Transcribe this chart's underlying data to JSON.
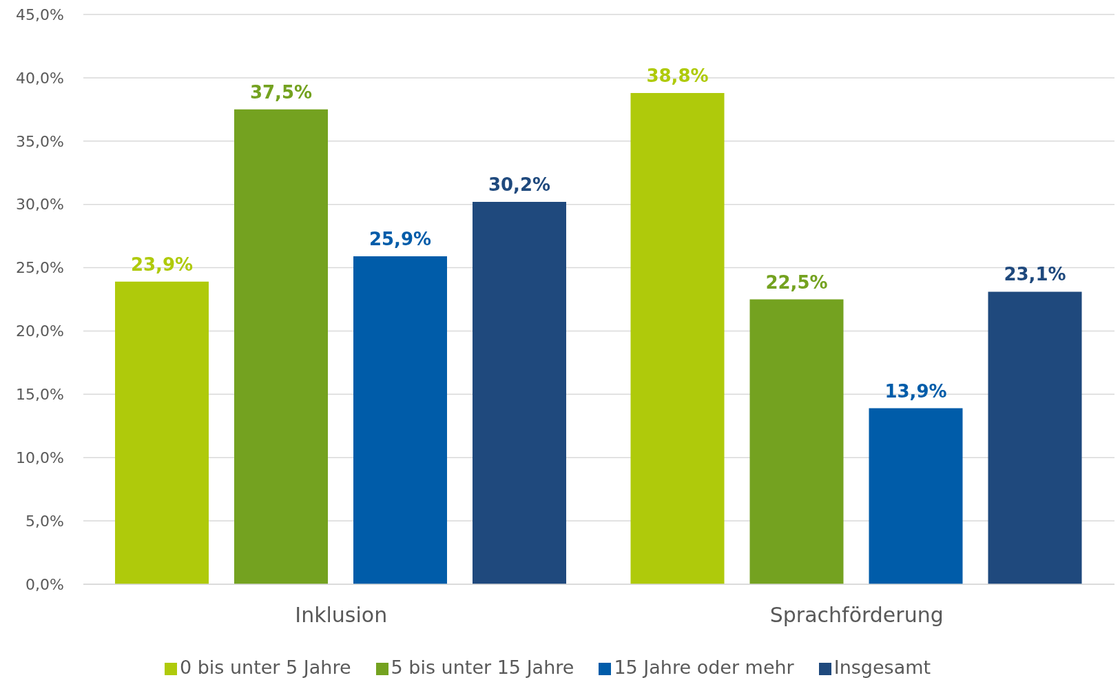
{
  "chart_data": {
    "type": "bar",
    "categories": [
      "Inklusion",
      "Sprachförderung"
    ],
    "series": [
      {
        "name": "0 bis unter 5 Jahre",
        "color": "#afca0b",
        "values": [
          23.9,
          38.8
        ],
        "value_labels": [
          "23,9%",
          "38,8%"
        ]
      },
      {
        "name": "5 bis unter 15 Jahre",
        "color": "#74a220",
        "values": [
          37.5,
          22.5
        ],
        "value_labels": [
          "37,5%",
          "22,5%"
        ]
      },
      {
        "name": "15 Jahre oder mehr",
        "color": "#005ca9",
        "values": [
          25.9,
          13.9
        ],
        "value_labels": [
          "25,9%",
          "13,9%"
        ]
      },
      {
        "name": "Insgesamt",
        "color": "#1f497d",
        "values": [
          30.2,
          23.1
        ],
        "value_labels": [
          "30,2%",
          "23,1%"
        ]
      }
    ],
    "ylim": [
      0,
      45
    ],
    "yticks": [
      {
        "value": 0,
        "label": "0,0%"
      },
      {
        "value": 5,
        "label": "5,0%"
      },
      {
        "value": 10,
        "label": "10,0%"
      },
      {
        "value": 15,
        "label": "15,0%"
      },
      {
        "value": 20,
        "label": "20,0%"
      },
      {
        "value": 25,
        "label": "25,0%"
      },
      {
        "value": 30,
        "label": "30,0%"
      },
      {
        "value": 35,
        "label": "35,0%"
      },
      {
        "value": 40,
        "label": "40,0%"
      },
      {
        "value": 45,
        "label": "45,0%"
      }
    ],
    "grid": "y",
    "legend": "bottom"
  }
}
